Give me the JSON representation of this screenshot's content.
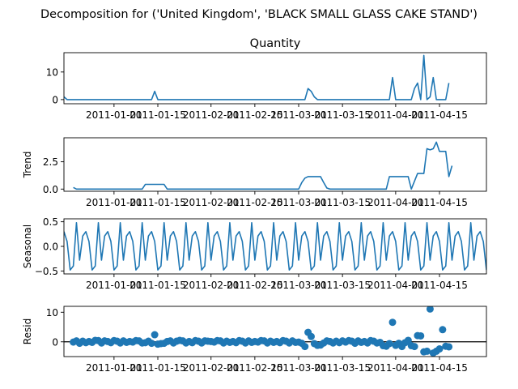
{
  "figure": {
    "suptitle": "Decomposition for ('United Kingdom', 'BLACK SMALL GLASS CAKE STAND')"
  },
  "chart_data": [
    {
      "type": "line",
      "title": "Quantity",
      "ylabel": "",
      "xlim_days": [
        0,
        135
      ],
      "ylim": [
        -1.5,
        17
      ],
      "yticks": [
        0,
        10
      ],
      "xticks": [
        "2011-01-01",
        "2011-01-15",
        "2011-02-01",
        "2011-02-15",
        "2011-03-01",
        "2011-03-15",
        "2011-04-01",
        "2011-04-15"
      ],
      "x_tick_days": [
        16,
        30,
        47,
        61,
        75,
        89,
        106,
        120
      ],
      "grid": false,
      "points": [
        [
          0,
          1
        ],
        [
          1,
          0
        ],
        [
          28,
          0
        ],
        [
          29,
          3
        ],
        [
          30,
          0
        ],
        [
          77,
          0
        ],
        [
          78,
          4
        ],
        [
          79,
          3
        ],
        [
          80,
          1
        ],
        [
          81,
          0
        ],
        [
          104,
          0
        ],
        [
          105,
          8
        ],
        [
          106,
          0
        ],
        [
          111,
          0
        ],
        [
          112,
          4
        ],
        [
          113,
          6
        ],
        [
          114,
          0
        ],
        [
          115,
          16
        ],
        [
          116,
          0
        ],
        [
          117,
          1
        ],
        [
          118,
          8
        ],
        [
          119,
          0
        ],
        [
          122,
          0
        ],
        [
          123,
          6
        ]
      ]
    },
    {
      "type": "line",
      "title": "",
      "ylabel": "Trend",
      "ylim": [
        -0.2,
        4.7
      ],
      "yticks": [
        0.0,
        2.5
      ],
      "ytick_labels": [
        "0.0",
        "2.5"
      ],
      "grid": false,
      "points": [
        [
          3,
          0.15
        ],
        [
          4,
          0
        ],
        [
          25,
          0
        ],
        [
          26,
          0.43
        ],
        [
          32,
          0.43
        ],
        [
          33,
          0
        ],
        [
          75,
          0
        ],
        [
          76,
          0.6
        ],
        [
          77,
          1
        ],
        [
          78,
          1.14
        ],
        [
          82,
          1.14
        ],
        [
          83,
          0.6
        ],
        [
          84,
          0.1
        ],
        [
          85,
          0
        ],
        [
          103,
          0
        ],
        [
          104,
          1.14
        ],
        [
          110,
          1.14
        ],
        [
          111,
          0
        ],
        [
          113,
          1.43
        ],
        [
          115,
          1.43
        ],
        [
          116,
          3.7
        ],
        [
          117,
          3.6
        ],
        [
          118,
          3.7
        ],
        [
          119,
          4.3
        ],
        [
          120,
          3.45
        ],
        [
          122,
          3.45
        ],
        [
          123,
          1.14
        ],
        [
          124,
          2.14
        ]
      ]
    },
    {
      "type": "line",
      "title": "",
      "ylabel": "Seasonal",
      "ylim": [
        -0.56,
        0.56
      ],
      "yticks": [
        -0.5,
        0.0,
        0.5
      ],
      "ytick_labels": [
        "−0.5",
        "0.0",
        "0.5"
      ],
      "grid": false,
      "period": 7,
      "pattern": [
        0.3,
        0.1,
        -0.48,
        -0.4,
        0.48,
        -0.28,
        0.21
      ],
      "anchor_day": 0
    },
    {
      "type": "scatter",
      "title": "",
      "ylabel": "Resid",
      "ylim": [
        -5,
        12
      ],
      "yticks": [
        0,
        10
      ],
      "grid": false,
      "baseline": 0,
      "points": [
        [
          3,
          -0.1
        ],
        [
          4,
          0.3
        ],
        [
          5,
          -0.5
        ],
        [
          6,
          0.2
        ],
        [
          7,
          -0.3
        ],
        [
          8,
          0.1
        ],
        [
          9,
          -0.2
        ],
        [
          10,
          0.5
        ],
        [
          11,
          0.4
        ],
        [
          12,
          -0.4
        ],
        [
          13,
          0.3
        ],
        [
          14,
          0.1
        ],
        [
          15,
          -0.3
        ],
        [
          16,
          0.4
        ],
        [
          17,
          0.2
        ],
        [
          18,
          -0.4
        ],
        [
          19,
          0.3
        ],
        [
          20,
          -0.2
        ],
        [
          21,
          0.1
        ],
        [
          22,
          -0.1
        ],
        [
          23,
          0.4
        ],
        [
          24,
          0.3
        ],
        [
          25,
          -0.4
        ],
        [
          26,
          -0.3
        ],
        [
          27,
          0.2
        ],
        [
          28,
          -0.5
        ],
        [
          29,
          2.4
        ],
        [
          30,
          -0.8
        ],
        [
          31,
          -0.6
        ],
        [
          32,
          -0.5
        ],
        [
          33,
          0.1
        ],
        [
          34,
          0.3
        ],
        [
          35,
          -0.4
        ],
        [
          36,
          0.2
        ],
        [
          37,
          0.5
        ],
        [
          38,
          0.3
        ],
        [
          39,
          -0.4
        ],
        [
          40,
          0.1
        ],
        [
          41,
          -0.3
        ],
        [
          42,
          0.4
        ],
        [
          43,
          0.2
        ],
        [
          44,
          -0.4
        ],
        [
          45,
          0.3
        ],
        [
          46,
          0.2
        ],
        [
          47,
          0.1
        ],
        [
          48,
          -0.1
        ],
        [
          49,
          0.4
        ],
        [
          50,
          0.3
        ],
        [
          51,
          -0.4
        ],
        [
          52,
          0.2
        ],
        [
          53,
          -0.2
        ],
        [
          54,
          0.1
        ],
        [
          55,
          -0.3
        ],
        [
          56,
          0.4
        ],
        [
          57,
          0.2
        ],
        [
          58,
          -0.4
        ],
        [
          59,
          0.3
        ],
        [
          60,
          -0.2
        ],
        [
          61,
          0.1
        ],
        [
          62,
          -0.1
        ],
        [
          63,
          0.4
        ],
        [
          64,
          0.3
        ],
        [
          65,
          -0.4
        ],
        [
          66,
          0.2
        ],
        [
          67,
          -0.2
        ],
        [
          68,
          0.1
        ],
        [
          69,
          -0.3
        ],
        [
          70,
          0.4
        ],
        [
          71,
          0.2
        ],
        [
          72,
          -0.4
        ],
        [
          73,
          0.3
        ],
        [
          74,
          -0.2
        ],
        [
          75,
          -0.1
        ],
        [
          76,
          -0.5
        ],
        [
          77,
          -1.6
        ],
        [
          78,
          3.2
        ],
        [
          79,
          1.8
        ],
        [
          80,
          -0.6
        ],
        [
          81,
          -1.2
        ],
        [
          82,
          -1.1
        ],
        [
          83,
          -0.4
        ],
        [
          84,
          0.3
        ],
        [
          85,
          0.1
        ],
        [
          86,
          -0.4
        ],
        [
          87,
          0.2
        ],
        [
          88,
          -0.3
        ],
        [
          89,
          0.3
        ],
        [
          90,
          -0.1
        ],
        [
          91,
          0.4
        ],
        [
          92,
          0.2
        ],
        [
          93,
          -0.5
        ],
        [
          94,
          0.3
        ],
        [
          95,
          -0.2
        ],
        [
          96,
          0.1
        ],
        [
          97,
          -0.4
        ],
        [
          98,
          0.4
        ],
        [
          99,
          0.2
        ],
        [
          100,
          -0.4
        ],
        [
          101,
          -0.2
        ],
        [
          102,
          -1.3
        ],
        [
          103,
          -1.5
        ],
        [
          104,
          -0.6
        ],
        [
          105,
          6.6
        ],
        [
          106,
          -1.2
        ],
        [
          107,
          -0.5
        ],
        [
          108,
          -1.6
        ],
        [
          109,
          -0.3
        ],
        [
          110,
          0.5
        ],
        [
          111,
          -1.3
        ],
        [
          112,
          -1.6
        ],
        [
          113,
          2.1
        ],
        [
          114,
          2.0
        ],
        [
          115,
          -3.4
        ],
        [
          116,
          -3.2
        ],
        [
          117,
          11.1
        ],
        [
          118,
          -3.8
        ],
        [
          119,
          -3.2
        ],
        [
          120,
          -2.4
        ],
        [
          121,
          4.1
        ],
        [
          122,
          -1.5
        ],
        [
          123,
          -1.7
        ]
      ]
    }
  ]
}
